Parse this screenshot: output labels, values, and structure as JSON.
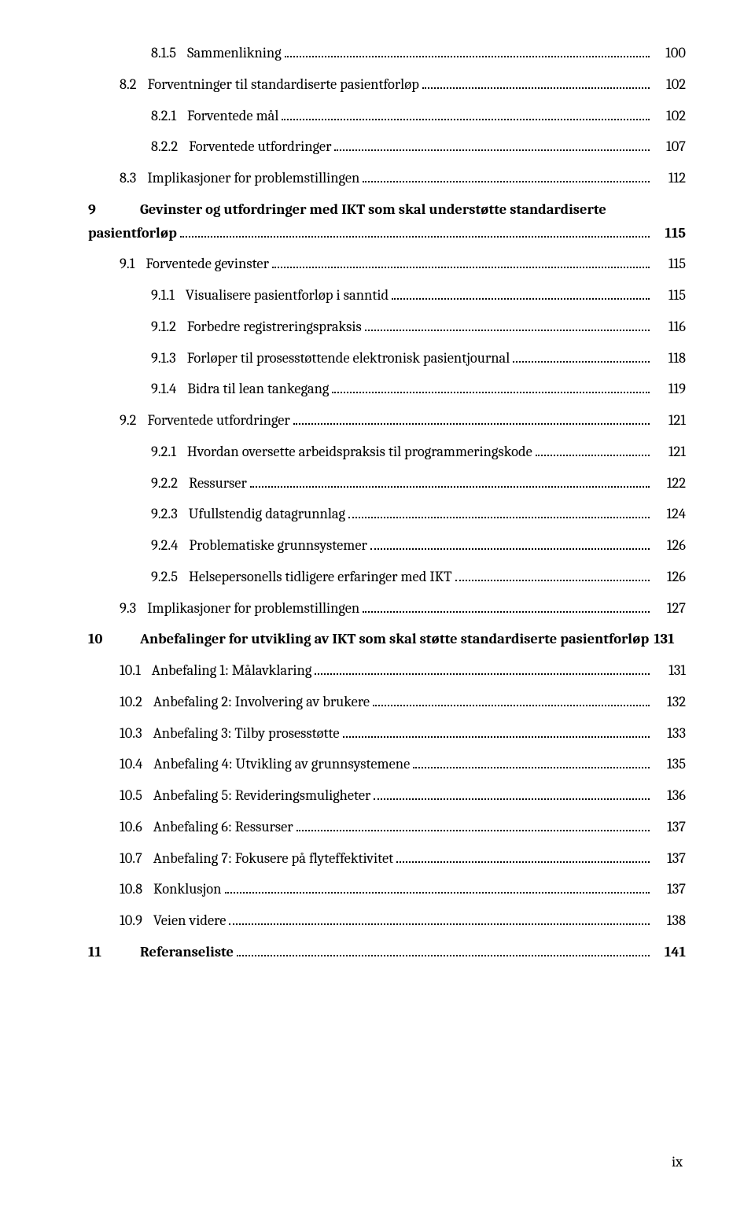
{
  "folio": "ix",
  "entries": [
    {
      "indent": 2,
      "bold": false,
      "num": "8.1.5",
      "title": "Sammenlikning",
      "page": "100"
    },
    {
      "indent": 1,
      "bold": false,
      "num": "8.2",
      "title": "Forventninger til standardiserte pasientforløp",
      "page": "102"
    },
    {
      "indent": 2,
      "bold": false,
      "num": "8.2.1",
      "title": "Forventede mål",
      "page": "102"
    },
    {
      "indent": 2,
      "bold": false,
      "num": "8.2.2",
      "title": "Forventede utfordringer",
      "page": "107"
    },
    {
      "indent": 1,
      "bold": false,
      "num": "8.3",
      "title": "Implikasjoner for problemstillingen",
      "page": "112"
    },
    {
      "indent": 0,
      "bold": true,
      "num": "9",
      "title": "Gevinster og utfordringer med IKT som skal understøtte standardiserte pasientforløp",
      "page": "115",
      "wrap": true
    },
    {
      "indent": 1,
      "bold": false,
      "num": "9.1",
      "title": "Forventede gevinster",
      "page": "115"
    },
    {
      "indent": 2,
      "bold": false,
      "num": "9.1.1",
      "title": "Visualisere pasientforløp i sanntid",
      "page": "115"
    },
    {
      "indent": 2,
      "bold": false,
      "num": "9.1.2",
      "title": "Forbedre registreringspraksis",
      "page": "116"
    },
    {
      "indent": 2,
      "bold": false,
      "num": "9.1.3",
      "title": "Forløper til prosesstøttende elektronisk pasientjournal",
      "page": "118"
    },
    {
      "indent": 2,
      "bold": false,
      "num": "9.1.4",
      "title": "Bidra til lean tankegang",
      "page": "119"
    },
    {
      "indent": 1,
      "bold": false,
      "num": "9.2",
      "title": "Forventede utfordringer",
      "page": "121"
    },
    {
      "indent": 2,
      "bold": false,
      "num": "9.2.1",
      "title": "Hvordan oversette arbeidspraksis til programmeringskode",
      "page": "121"
    },
    {
      "indent": 2,
      "bold": false,
      "num": "9.2.2",
      "title": "Ressurser",
      "page": "122"
    },
    {
      "indent": 2,
      "bold": false,
      "num": "9.2.3",
      "title": "Ufullstendig datagrunnlag",
      "page": "124"
    },
    {
      "indent": 2,
      "bold": false,
      "num": "9.2.4",
      "title": "Problematiske grunnsystemer",
      "page": "126"
    },
    {
      "indent": 2,
      "bold": false,
      "num": "9.2.5",
      "title": "Helsepersonells tidligere erfaringer med IKT",
      "page": "126"
    },
    {
      "indent": 1,
      "bold": false,
      "num": "9.3",
      "title": "Implikasjoner for problemstillingen",
      "page": "127"
    },
    {
      "indent": 0,
      "bold": true,
      "num": "10",
      "title": "Anbefalinger for utvikling av IKT som skal støtte standardiserte pasientforløp",
      "page": "131",
      "noleader": true
    },
    {
      "indent": 1,
      "bold": false,
      "num": "10.1",
      "title": "Anbefaling 1: Målavklaring",
      "page": "131"
    },
    {
      "indent": 1,
      "bold": false,
      "num": "10.2",
      "title": "Anbefaling 2: Involvering av brukere",
      "page": "132"
    },
    {
      "indent": 1,
      "bold": false,
      "num": "10.3",
      "title": "Anbefaling 3: Tilby prosesstøtte",
      "page": "133"
    },
    {
      "indent": 1,
      "bold": false,
      "num": "10.4",
      "title": "Anbefaling 4: Utvikling av grunnsystemene",
      "page": "135"
    },
    {
      "indent": 1,
      "bold": false,
      "num": "10.5",
      "title": "Anbefaling 5: Revideringsmuligheter",
      "page": "136"
    },
    {
      "indent": 1,
      "bold": false,
      "num": "10.6",
      "title": "Anbefaling 6: Ressurser",
      "page": "137"
    },
    {
      "indent": 1,
      "bold": false,
      "num": "10.7",
      "title": "Anbefaling 7: Fokusere på flyteffektivitet",
      "page": "137"
    },
    {
      "indent": 1,
      "bold": false,
      "num": "10.8",
      "title": "Konklusjon",
      "page": "137"
    },
    {
      "indent": 1,
      "bold": false,
      "num": "10.9",
      "title": "Veien videre",
      "page": "138"
    },
    {
      "indent": 0,
      "bold": true,
      "num": "11",
      "title": "Referanseliste",
      "page": "141"
    }
  ]
}
